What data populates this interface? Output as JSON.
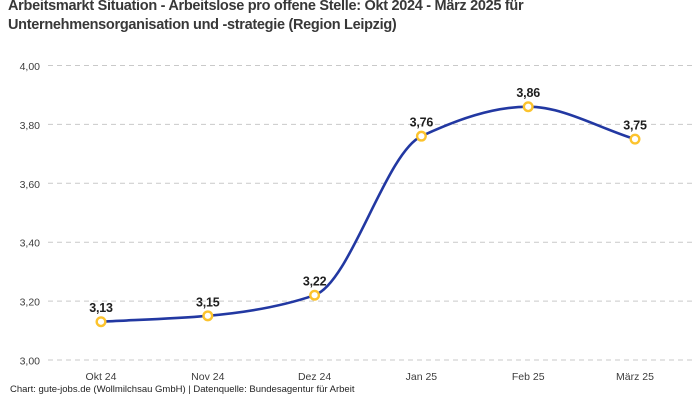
{
  "header": {
    "title": "Arbeitsmarkt Situation - Arbeitslose pro offene Stelle: Okt 2024 - März 2025 für Unternehmensorganisation und -strategie (Region Leipzig)",
    "title_line1": "Arbeitsmarkt Situation - Arbeitslose pro offene Stelle: Okt 2024 - März 2025 für",
    "title_line2": "Unternehmensorganisation und -strategie (Region Leipzig)"
  },
  "chart_data": {
    "type": "line",
    "title": "Arbeitsmarkt Situation - Arbeitslose pro offene Stelle: Okt 2024 - März 2025 für Unternehmensorganisation und -strategie (Region Leipzig)",
    "categories": [
      "Okt 24",
      "Nov 24",
      "Dez 24",
      "Jan 25",
      "Feb 25",
      "März 25"
    ],
    "series": [
      {
        "name": "Arbeitslose pro offene Stelle",
        "values": [
          3.13,
          3.15,
          3.22,
          3.76,
          3.86,
          3.75
        ]
      }
    ],
    "value_labels": [
      "3,13",
      "3,15",
      "3,22",
      "3,76",
      "3,86",
      "3,75"
    ],
    "y_ticks": [
      {
        "value": 4.0,
        "label": "4,00"
      },
      {
        "value": 3.8,
        "label": "3,80"
      },
      {
        "value": 3.6,
        "label": "3,60"
      },
      {
        "value": 3.4,
        "label": "3,40"
      },
      {
        "value": 3.2,
        "label": "3,20"
      },
      {
        "value": 3.0,
        "label": "3,00"
      }
    ],
    "ylim": [
      3.0,
      4.0
    ],
    "xlabel": "",
    "ylabel": "",
    "grid": "horizontal-dashed",
    "legend": "none",
    "interpolation": "monotone-cubic",
    "colors": {
      "line": "#2238a2",
      "marker_ring": "#fcc32d",
      "marker_fill": "#ffffff",
      "gridline": "#c9c9c9",
      "tick_text": "#3d3d3d",
      "value_label_text": "#1f1f1f"
    }
  },
  "footer": {
    "text": "Chart: gute-jobs.de (Wollmilchsau GmbH) | Datenquelle: Bundesagentur für Arbeit"
  }
}
